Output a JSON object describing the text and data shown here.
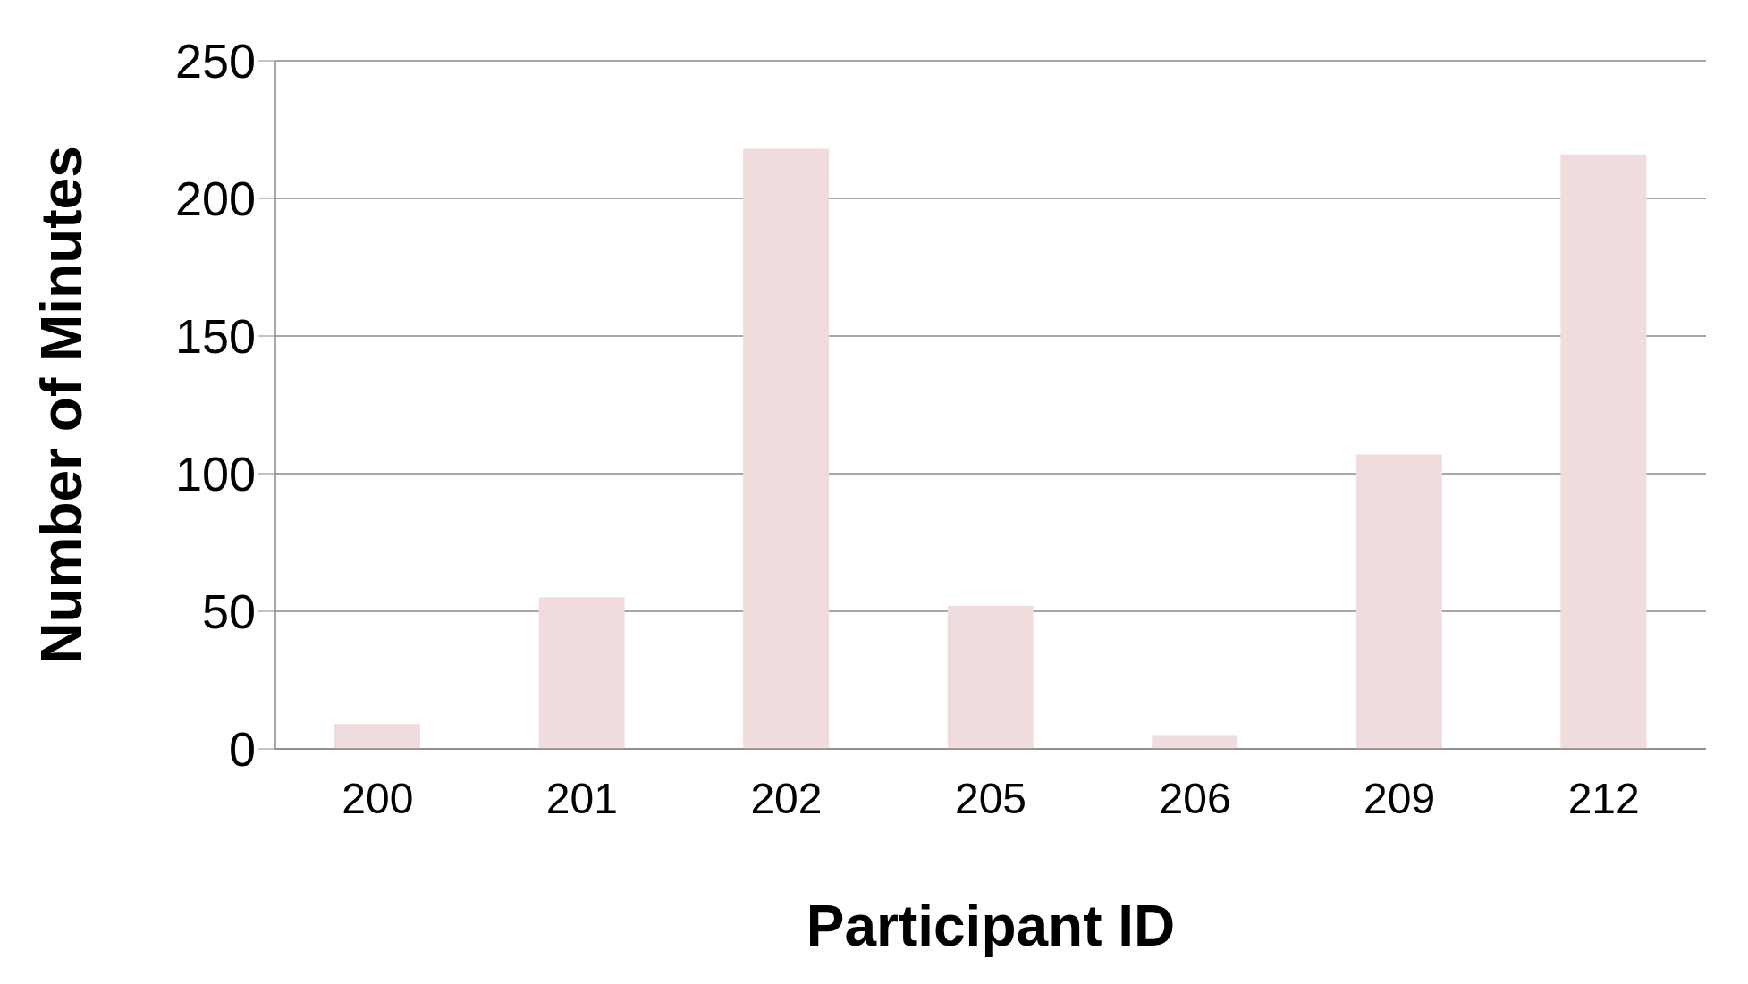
{
  "chart_data": {
    "type": "bar",
    "xlabel": "Participant ID",
    "ylabel": "Number of Minutes",
    "categories": [
      "200",
      "201",
      "202",
      "205",
      "206",
      "209",
      "212"
    ],
    "values": [
      9,
      55,
      218,
      52,
      5,
      107,
      216
    ],
    "color": "#f0dcdc",
    "ylim": [
      0,
      250
    ],
    "yticks": [
      0,
      50,
      100,
      150,
      200,
      250
    ],
    "grid": "y"
  }
}
